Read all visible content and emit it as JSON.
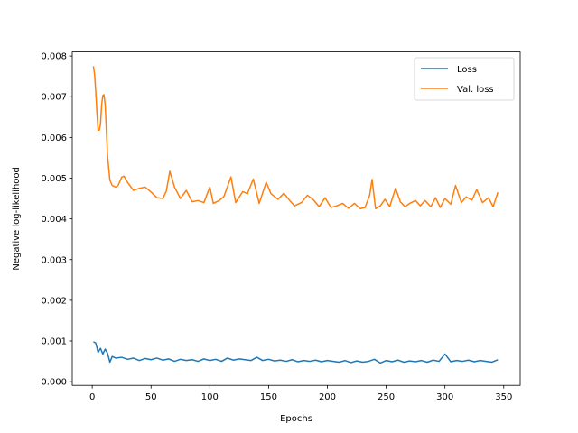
{
  "chart_data": {
    "type": "line",
    "title": "",
    "xlabel": "Epochs",
    "ylabel": "Negative log-likelihood",
    "xlim": [
      -17,
      364
    ],
    "ylim": [
      -9e-05,
      0.0081
    ],
    "xticks": [
      0,
      50,
      100,
      150,
      200,
      250,
      300,
      350
    ],
    "yticks": [
      0.0,
      0.001,
      0.002,
      0.003,
      0.004,
      0.005,
      0.006,
      0.007,
      0.008
    ],
    "ytick_labels": [
      "0.000",
      "0.001",
      "0.002",
      "0.003",
      "0.004",
      "0.005",
      "0.006",
      "0.007",
      "0.008"
    ],
    "grid": false,
    "legend_position": "top-right",
    "series": [
      {
        "name": "Loss",
        "color": "#1f77b4",
        "x": [
          1,
          3,
          5,
          7,
          9,
          11,
          13,
          15,
          17,
          20,
          25,
          30,
          35,
          40,
          45,
          50,
          55,
          60,
          65,
          70,
          75,
          80,
          85,
          90,
          95,
          100,
          105,
          110,
          115,
          120,
          125,
          130,
          135,
          140,
          145,
          150,
          155,
          160,
          165,
          170,
          175,
          180,
          185,
          190,
          195,
          200,
          205,
          210,
          215,
          220,
          225,
          230,
          235,
          240,
          245,
          250,
          255,
          260,
          265,
          270,
          275,
          280,
          285,
          290,
          295,
          300,
          305,
          310,
          315,
          320,
          325,
          330,
          335,
          340,
          345
        ],
        "y": [
          0.00098,
          0.00095,
          0.00072,
          0.00082,
          0.00068,
          0.0008,
          0.0007,
          0.00048,
          0.00062,
          0.00058,
          0.0006,
          0.00055,
          0.00058,
          0.00052,
          0.00057,
          0.00054,
          0.00058,
          0.00053,
          0.00056,
          0.0005,
          0.00055,
          0.00052,
          0.00054,
          0.0005,
          0.00056,
          0.00052,
          0.00055,
          0.0005,
          0.00058,
          0.00053,
          0.00056,
          0.00054,
          0.00052,
          0.0006,
          0.00052,
          0.00055,
          0.00051,
          0.00053,
          0.0005,
          0.00054,
          0.00049,
          0.00052,
          0.0005,
          0.00053,
          0.00049,
          0.00052,
          0.0005,
          0.00048,
          0.00052,
          0.00047,
          0.00051,
          0.00048,
          0.0005,
          0.00055,
          0.00046,
          0.00052,
          0.00049,
          0.00053,
          0.00048,
          0.00051,
          0.00049,
          0.00052,
          0.00048,
          0.00053,
          0.0005,
          0.00068,
          0.00049,
          0.00052,
          0.0005,
          0.00053,
          0.00049,
          0.00052,
          0.0005,
          0.00048,
          0.00054
        ]
      },
      {
        "name": "Val. loss",
        "color": "#ff7f0e",
        "x": [
          1,
          2,
          3,
          4,
          5,
          6,
          7,
          8,
          9,
          10,
          11,
          12,
          13,
          15,
          17,
          20,
          22,
          25,
          27,
          30,
          35,
          40,
          45,
          50,
          55,
          60,
          63,
          66,
          70,
          75,
          80,
          85,
          90,
          95,
          100,
          103,
          108,
          112,
          118,
          122,
          128,
          132,
          137,
          142,
          148,
          152,
          158,
          163,
          168,
          172,
          178,
          183,
          188,
          193,
          198,
          203,
          208,
          213,
          218,
          223,
          228,
          232,
          236,
          238,
          241,
          245,
          249,
          253,
          258,
          262,
          266,
          270,
          275,
          279,
          283,
          288,
          292,
          296,
          300,
          305,
          309,
          314,
          318,
          323,
          327,
          332,
          337,
          341,
          345
        ],
        "y": [
          0.00775,
          0.00755,
          0.00712,
          0.0066,
          0.00618,
          0.00618,
          0.00632,
          0.0068,
          0.00703,
          0.00705,
          0.0068,
          0.0062,
          0.00555,
          0.00495,
          0.00482,
          0.00478,
          0.00482,
          0.00502,
          0.00505,
          0.0049,
          0.0047,
          0.00475,
          0.00478,
          0.00466,
          0.00452,
          0.0045,
          0.00468,
          0.00517,
          0.00478,
          0.0045,
          0.0047,
          0.00442,
          0.00445,
          0.0044,
          0.00478,
          0.00438,
          0.00445,
          0.00455,
          0.00503,
          0.0044,
          0.00467,
          0.00462,
          0.00498,
          0.00438,
          0.0049,
          0.00462,
          0.00448,
          0.00463,
          0.00445,
          0.00432,
          0.0044,
          0.00458,
          0.00447,
          0.0043,
          0.00452,
          0.00428,
          0.00432,
          0.00438,
          0.00426,
          0.00438,
          0.00425,
          0.00428,
          0.00458,
          0.00497,
          0.00425,
          0.00432,
          0.00448,
          0.0043,
          0.00475,
          0.00442,
          0.0043,
          0.00438,
          0.00445,
          0.00432,
          0.00445,
          0.0043,
          0.00452,
          0.00428,
          0.0045,
          0.00436,
          0.00482,
          0.0044,
          0.00454,
          0.00446,
          0.00472,
          0.0044,
          0.00452,
          0.0043,
          0.00465
        ]
      }
    ]
  }
}
